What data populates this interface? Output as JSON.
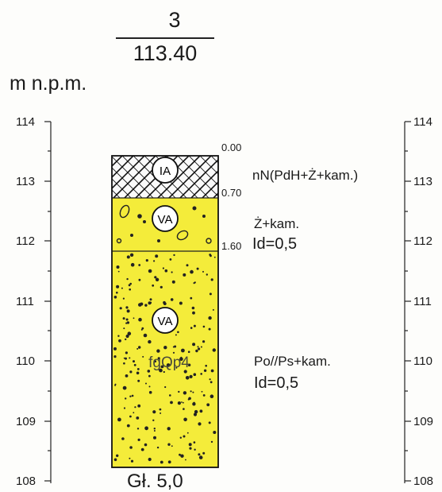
{
  "header": {
    "hole_number": "3",
    "ground_elevation": "113.40",
    "unit": "m n.p.m."
  },
  "scale": {
    "ticks_left": [
      "114",
      "113",
      "112",
      "111",
      "110",
      "109",
      "108"
    ],
    "ticks_right": [
      "114",
      "113",
      "112",
      "111",
      "110",
      "109",
      "108"
    ]
  },
  "layers": [
    {
      "top_depth": "0.00",
      "bottom_depth": "0.70",
      "group": "IA",
      "description": "nN(PdH+Ż+kam.)",
      "density": "",
      "fill": "hatched"
    },
    {
      "top_depth": "",
      "bottom_depth": "1.60",
      "group": "VA",
      "description": "Ż+kam.",
      "density": "Id=0,5",
      "fill": "#f4ec3a"
    },
    {
      "top_depth": "",
      "bottom_depth": "",
      "group": "VA",
      "description": "Po//Ps+kam.",
      "density": "Id=0,5",
      "stratigraphy": "fgQp4",
      "fill": "#f4ec3a"
    }
  ],
  "total_depth": "Gł. 5,0"
}
